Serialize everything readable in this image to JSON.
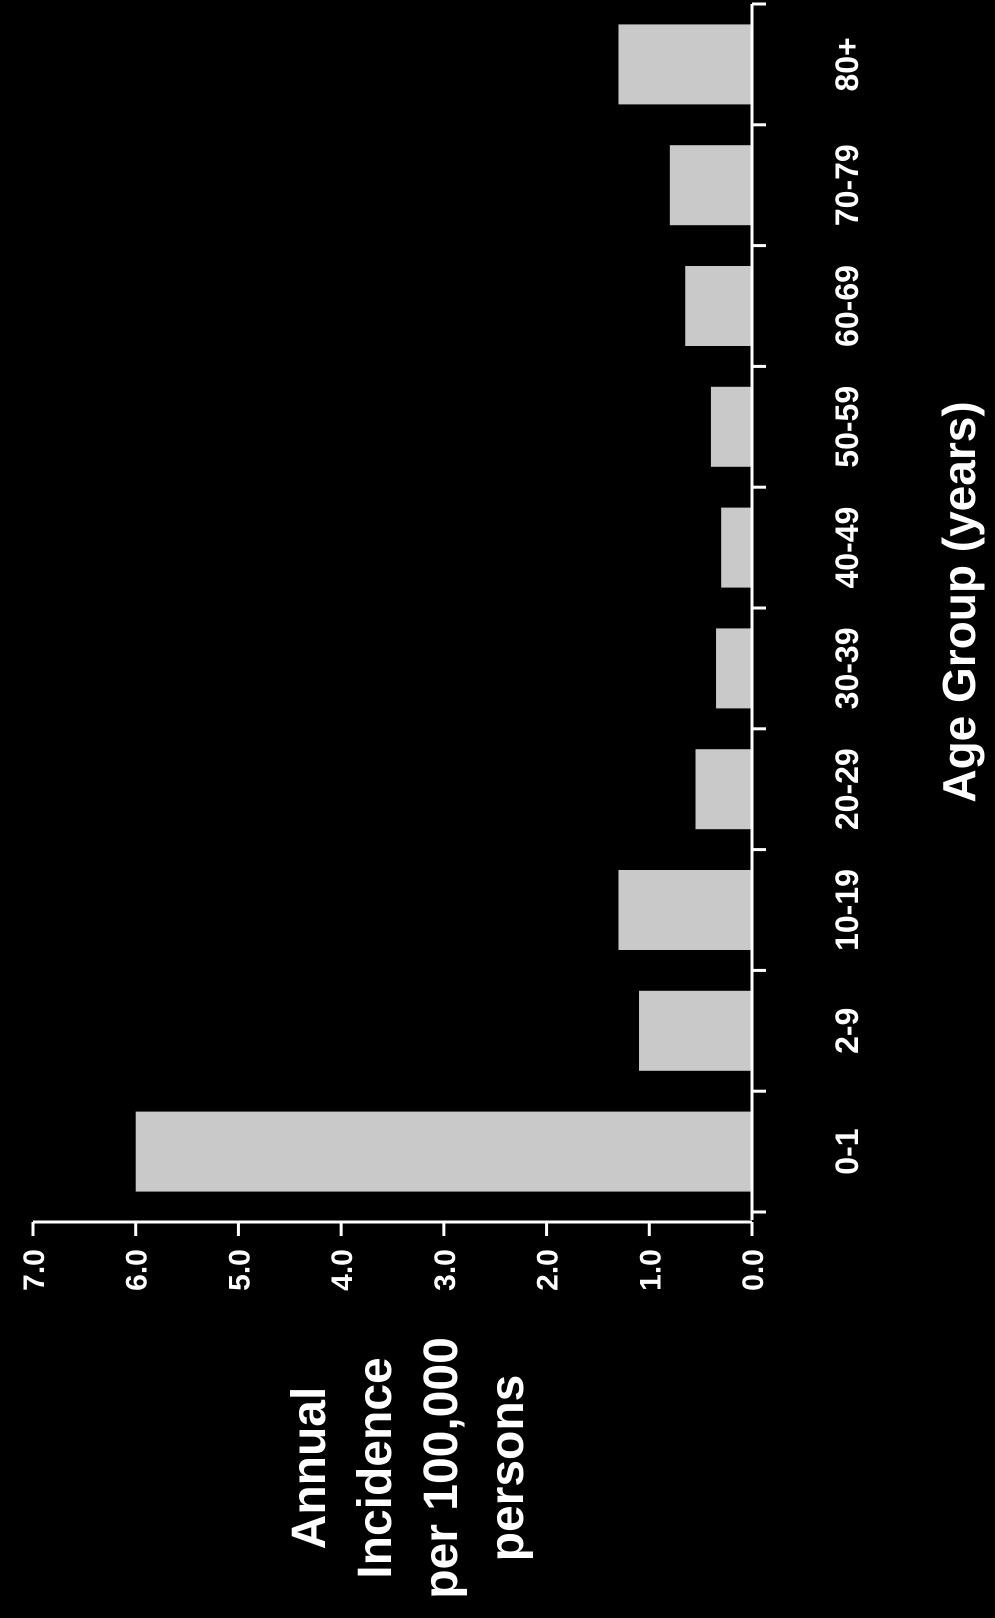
{
  "chart_data": {
    "type": "bar",
    "orientation": "horizontal-rotated",
    "categories": [
      "0-1",
      "2-9",
      "10-19",
      "20-29",
      "30-39",
      "40-49",
      "50-59",
      "60-69",
      "70-79",
      "80+"
    ],
    "values": [
      6.0,
      1.1,
      1.3,
      0.55,
      0.35,
      0.3,
      0.4,
      0.65,
      0.8,
      1.3
    ],
    "xlabel": "Age Group (years)",
    "ylabel_lines": [
      "Annual",
      "Incidence",
      "per 100,000",
      "persons"
    ],
    "ylim": [
      0,
      7
    ],
    "yticks": [
      "0.0",
      "1.0",
      "2.0",
      "3.0",
      "4.0",
      "5.0",
      "6.0",
      "7.0"
    ],
    "grid": false,
    "colors": {
      "background": "#000000",
      "bar": "#c9c9c9",
      "axis": "#ffffff",
      "text": "#ffffff"
    }
  }
}
